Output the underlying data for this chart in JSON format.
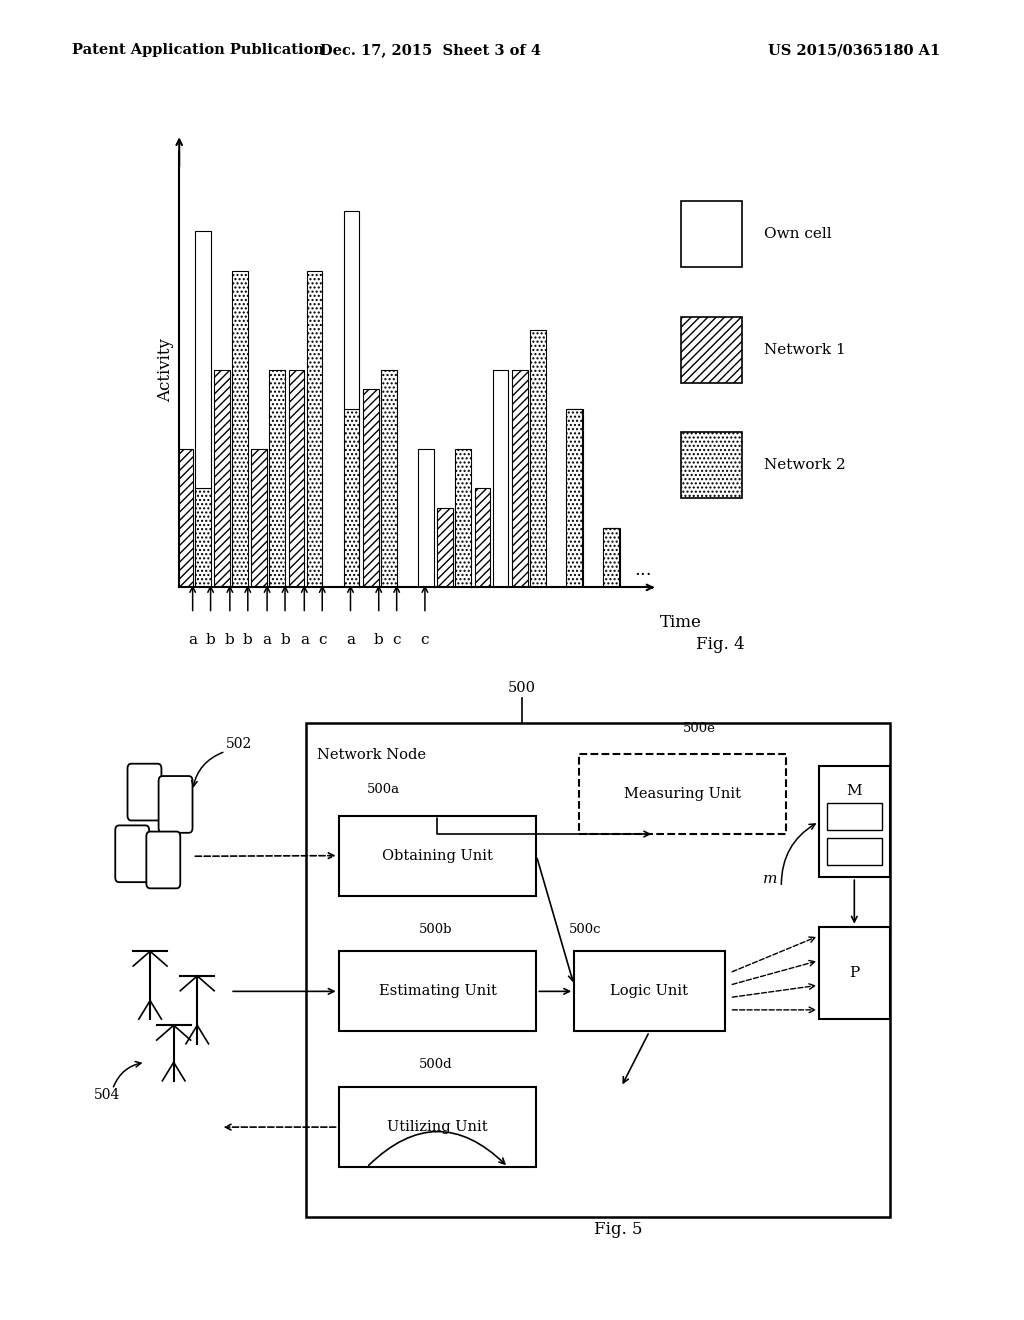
{
  "header_left": "Patent Application Publication",
  "header_mid": "Dec. 17, 2015  Sheet 3 of 4",
  "header_right": "US 2015/0365180 A1",
  "fig4_label": "Fig. 4",
  "fig5_label": "Fig. 5",
  "chart_ylabel": "Activity",
  "chart_xlabel": "Time",
  "x_labels": [
    "a",
    "b",
    "b",
    "b",
    "a",
    "b",
    "a",
    "c",
    "a",
    "b",
    "c",
    "c"
  ],
  "bg_color": "#ffffff",
  "bar_width": 0.35,
  "bar_gap": 0.05,
  "bar_data": [
    {
      "own": 6.5,
      "net1": 3.5,
      "net2": 2.5
    },
    {
      "own": 0,
      "net1": 5.5,
      "net2": 8.0
    },
    {
      "own": 0,
      "net1": 3.5,
      "net2": 5.5
    },
    {
      "own": 0,
      "net1": 5.5,
      "net2": 8.0
    },
    {
      "own": 5.0,
      "net1": 0,
      "net2": 4.5
    },
    {
      "own": 0,
      "net1": 5.0,
      "net2": 5.5
    },
    {
      "own": 3.5,
      "net1": 0,
      "net2": 0
    },
    {
      "own": 0,
      "net1": 2.0,
      "net2": 3.5
    },
    {
      "own": 5.5,
      "net1": 2.5,
      "net2": 0
    },
    {
      "own": 0,
      "net1": 5.5,
      "net2": 6.5
    },
    {
      "own": 0,
      "net1": 0,
      "net2": 4.5
    },
    {
      "own": 0,
      "net1": 0,
      "net2": 1.5
    }
  ],
  "legend_items": [
    {
      "label": "Own cell",
      "hatch": ""
    },
    {
      "label": "Network 1",
      "hatch": "////"
    },
    {
      "label": "Network 2",
      "hatch": "...."
    }
  ]
}
